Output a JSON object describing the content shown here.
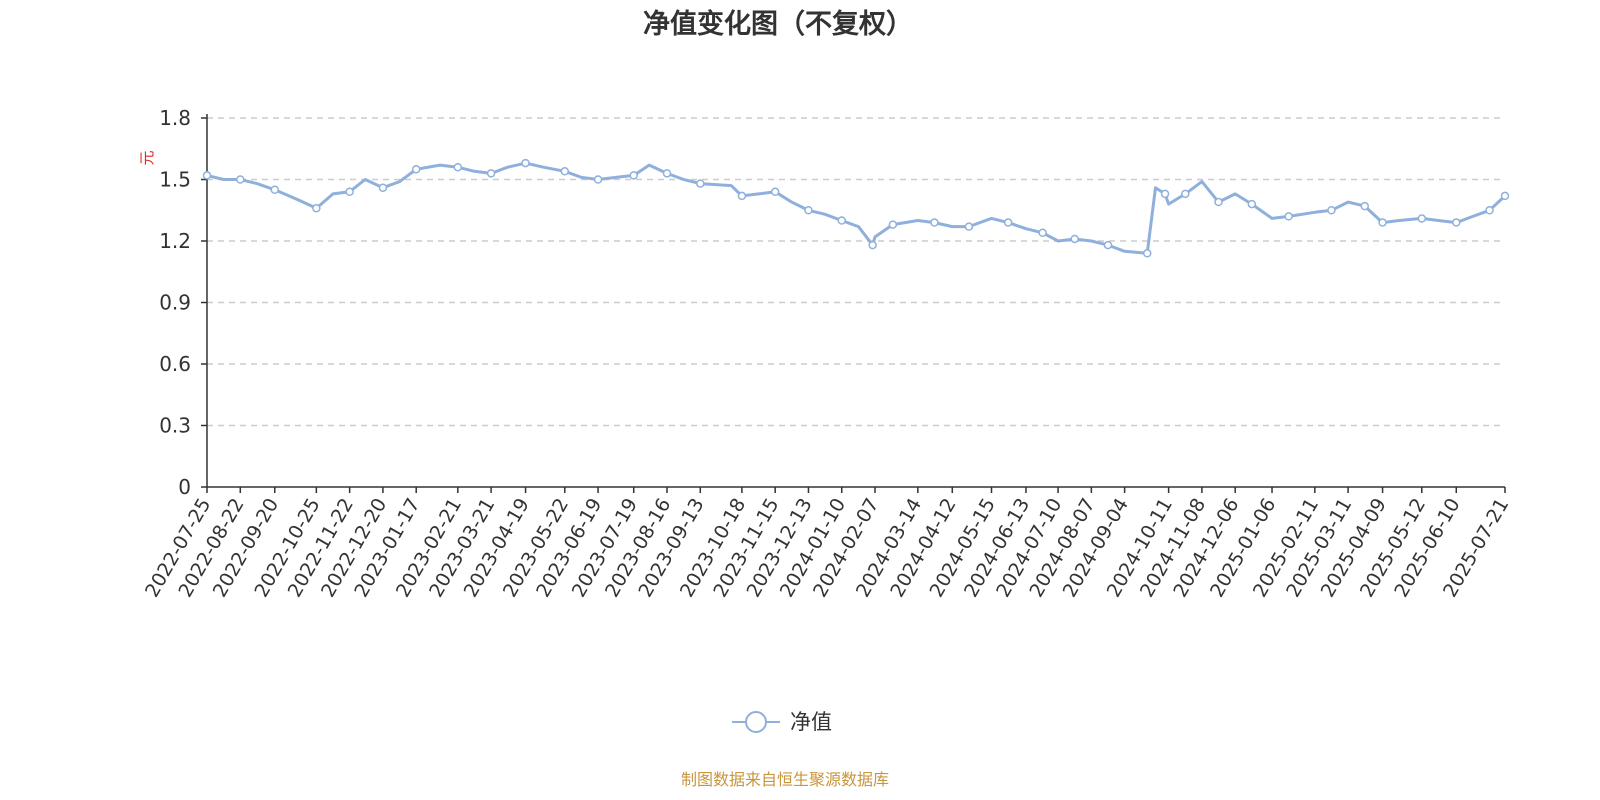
{
  "colors": {
    "series": "#8fb0dc",
    "axis": "#333333",
    "grid": "#cccccc",
    "ylabel": "#e0281f",
    "source": "#c8963c"
  },
  "chart_data": {
    "type": "line",
    "title": "净值变化图（不复权）",
    "ylabel": "元",
    "xlabel": "",
    "ylim": [
      0,
      1.8
    ],
    "yticks": [
      "0",
      "0.3",
      "0.6",
      "0.9",
      "1.2",
      "1.5",
      "1.8"
    ],
    "grid": true,
    "legend_position": "bottom-center",
    "x_tick_labels": [
      "2022-07-25",
      "2022-08-22",
      "2022-09-20",
      "2022-10-25",
      "2022-11-22",
      "2022-12-20",
      "2023-01-17",
      "2023-02-21",
      "2023-03-21",
      "2023-04-19",
      "2023-05-22",
      "2023-06-19",
      "2023-07-19",
      "2023-08-16",
      "2023-09-13",
      "2023-10-18",
      "2023-11-15",
      "2023-12-13",
      "2024-01-10",
      "2024-02-07",
      "2024-03-14",
      "2024-04-12",
      "2024-05-15",
      "2024-06-13",
      "2024-07-10",
      "2024-08-07",
      "2024-09-04",
      "2024-10-11",
      "2024-11-08",
      "2024-12-06",
      "2025-01-06",
      "2025-02-11",
      "2025-03-11",
      "2025-04-09",
      "2025-05-12",
      "2025-06-10",
      "2025-07-21"
    ],
    "series": [
      {
        "name": "净值",
        "x": [
          "2022-07-25",
          "2022-08-08",
          "2022-08-22",
          "2022-09-05",
          "2022-09-20",
          "2022-10-10",
          "2022-10-25",
          "2022-11-08",
          "2022-11-22",
          "2022-12-05",
          "2022-12-20",
          "2023-01-03",
          "2023-01-17",
          "2023-02-06",
          "2023-02-21",
          "2023-03-07",
          "2023-03-21",
          "2023-04-04",
          "2023-04-19",
          "2023-05-04",
          "2023-05-22",
          "2023-06-05",
          "2023-06-19",
          "2023-07-04",
          "2023-07-19",
          "2023-08-01",
          "2023-08-16",
          "2023-08-30",
          "2023-09-13",
          "2023-10-09",
          "2023-10-18",
          "2023-11-01",
          "2023-11-15",
          "2023-11-29",
          "2023-12-13",
          "2023-12-27",
          "2024-01-10",
          "2024-01-24",
          "2024-02-05",
          "2024-02-07",
          "2024-02-22",
          "2024-03-14",
          "2024-03-28",
          "2024-04-12",
          "2024-04-26",
          "2024-05-15",
          "2024-05-29",
          "2024-06-13",
          "2024-06-27",
          "2024-07-10",
          "2024-07-24",
          "2024-08-07",
          "2024-08-21",
          "2024-09-04",
          "2024-09-23",
          "2024-09-30",
          "2024-10-08",
          "2024-10-11",
          "2024-10-25",
          "2024-11-08",
          "2024-11-22",
          "2024-12-06",
          "2024-12-20",
          "2025-01-06",
          "2025-01-20",
          "2025-02-11",
          "2025-02-25",
          "2025-03-11",
          "2025-03-25",
          "2025-04-07",
          "2025-04-09",
          "2025-04-23",
          "2025-05-12",
          "2025-05-26",
          "2025-06-10",
          "2025-06-24",
          "2025-07-08",
          "2025-07-21"
        ],
        "values": [
          1.52,
          1.5,
          1.5,
          1.48,
          1.45,
          1.4,
          1.36,
          1.43,
          1.44,
          1.5,
          1.46,
          1.49,
          1.55,
          1.57,
          1.56,
          1.54,
          1.53,
          1.56,
          1.58,
          1.56,
          1.54,
          1.51,
          1.5,
          1.51,
          1.52,
          1.57,
          1.53,
          1.5,
          1.48,
          1.47,
          1.42,
          1.43,
          1.44,
          1.39,
          1.35,
          1.33,
          1.3,
          1.27,
          1.18,
          1.22,
          1.28,
          1.3,
          1.29,
          1.27,
          1.27,
          1.31,
          1.29,
          1.26,
          1.24,
          1.2,
          1.21,
          1.2,
          1.18,
          1.15,
          1.14,
          1.46,
          1.43,
          1.38,
          1.43,
          1.49,
          1.39,
          1.43,
          1.38,
          1.31,
          1.32,
          1.34,
          1.35,
          1.39,
          1.37,
          1.3,
          1.29,
          1.3,
          1.31,
          1.3,
          1.29,
          1.32,
          1.35,
          1.42
        ]
      }
    ]
  },
  "legend": {
    "label": "净值"
  },
  "source": "制图数据来自恒生聚源数据库"
}
